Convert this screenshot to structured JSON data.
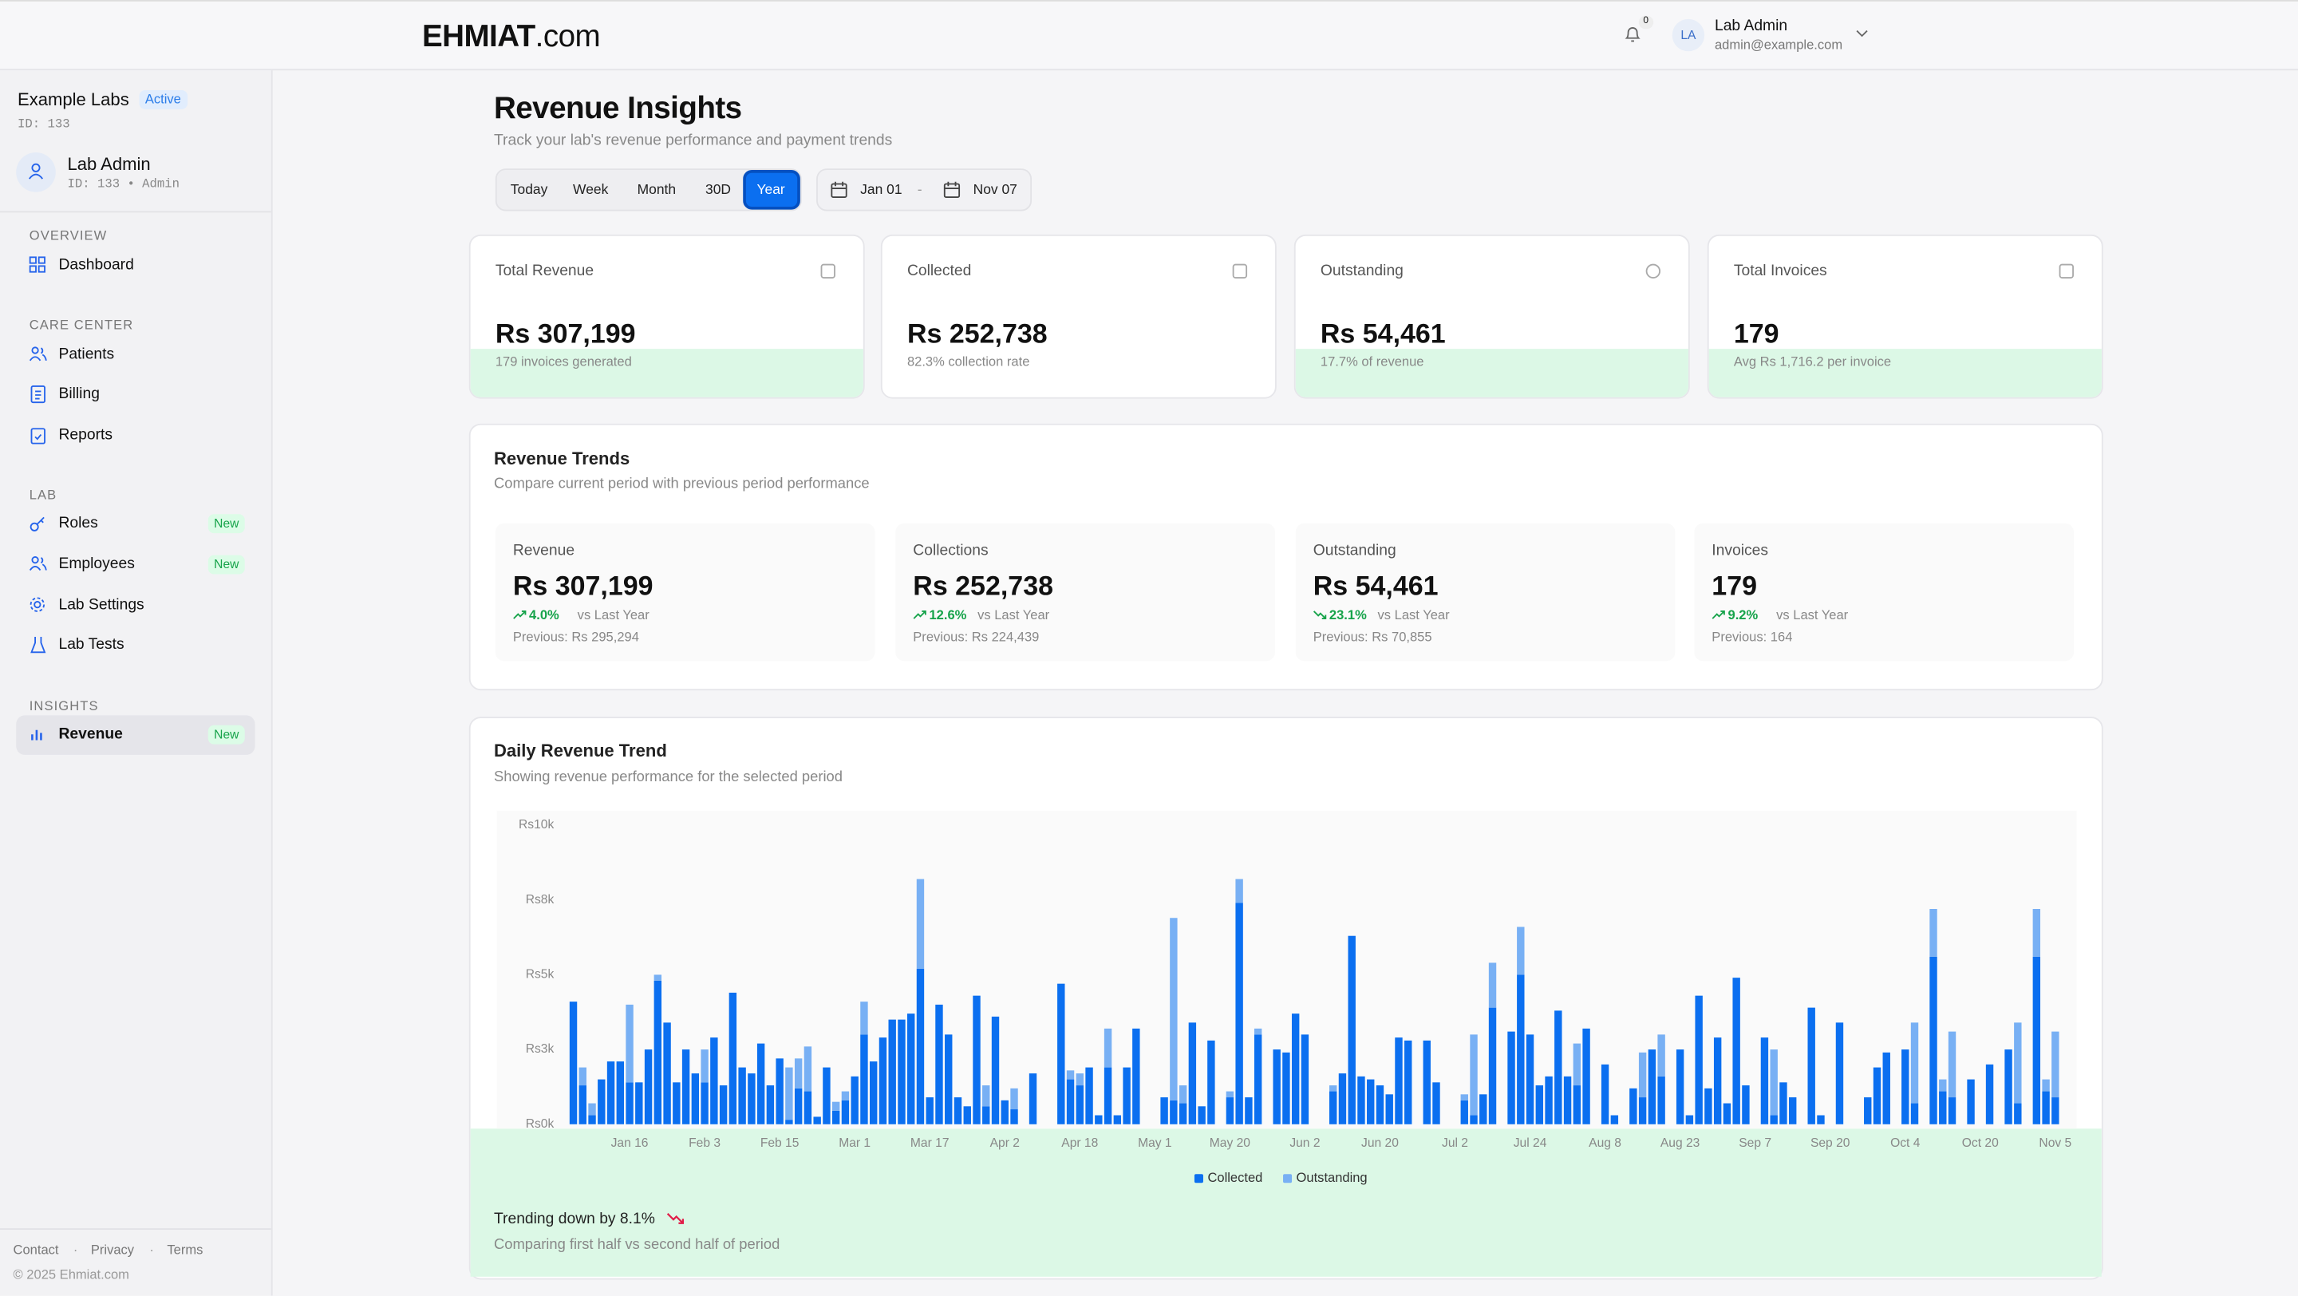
{
  "header": {
    "brand": "EHMIAT",
    "brand_suffix": ".com",
    "notifications": "0",
    "avatar": "LA",
    "user_name": "Lab Admin",
    "user_email": "admin@example.com"
  },
  "sidebar": {
    "org_name": "Example Labs",
    "org_status": "Active",
    "org_id": "ID: 133",
    "user_name": "Lab Admin",
    "user_meta": "ID: 133 • Admin",
    "sections": [
      {
        "title": "OVERVIEW",
        "items": [
          {
            "label": "Dashboard"
          }
        ]
      },
      {
        "title": "CARE CENTER",
        "items": [
          {
            "label": "Patients"
          },
          {
            "label": "Billing"
          },
          {
            "label": "Reports"
          }
        ]
      },
      {
        "title": "LAB",
        "items": [
          {
            "label": "Roles",
            "badge": "New"
          },
          {
            "label": "Employees",
            "badge": "New"
          },
          {
            "label": "Lab Settings"
          },
          {
            "label": "Lab Tests"
          }
        ]
      },
      {
        "title": "INSIGHTS",
        "items": [
          {
            "label": "Revenue",
            "badge": "New"
          }
        ]
      }
    ],
    "footer_links": [
      "Contact",
      "Privacy",
      "Terms"
    ],
    "footer_separator": "·",
    "copyright": "© 2025 Ehmiat.com"
  },
  "page": {
    "title": "Revenue Insights",
    "subtitle": "Track your lab's revenue performance and payment trends",
    "ranges": [
      "Today",
      "Week",
      "Month",
      "30D",
      "Year"
    ],
    "date_from": "Jan 01",
    "date_separator": "-",
    "date_to": "Nov 07"
  },
  "stat_cards": [
    {
      "label": "Total Revenue",
      "value": "Rs 307,199",
      "note": "179 invoices generated"
    },
    {
      "label": "Collected",
      "value": "Rs 252,738",
      "note": "82.3% collection rate"
    },
    {
      "label": "Outstanding",
      "value": "Rs 54,461",
      "note": "17.7% of revenue"
    },
    {
      "label": "Total Invoices",
      "value": "179",
      "note": "Avg Rs 1,716.2 per invoice"
    }
  ],
  "trends": {
    "title": "Revenue Trends",
    "subtitle": "Compare current period with previous period performance",
    "items": [
      {
        "label": "Revenue",
        "value": "Rs 307,199",
        "change": "4.0%",
        "compare": "vs Last Year",
        "previous": "Previous: Rs 295,294"
      },
      {
        "label": "Collections",
        "value": "Rs 252,738",
        "change": "12.6%",
        "compare": "vs Last Year",
        "previous": "Previous: Rs 224,439"
      },
      {
        "label": "Outstanding",
        "value": "Rs 54,461",
        "change": "23.1%",
        "compare": "vs Last Year",
        "previous": "Previous: Rs 70,855"
      },
      {
        "label": "Invoices",
        "value": "179",
        "change": "9.2%",
        "compare": "vs Last Year",
        "previous": "Previous: 164"
      }
    ]
  },
  "chart_data": {
    "type": "bar",
    "stacked": true,
    "title": "Daily Revenue Trend",
    "subtitle": "Showing revenue performance for the selected period",
    "categories": [
      null,
      null,
      null,
      null,
      null,
      null,
      "Jan 16",
      null,
      null,
      null,
      null,
      null,
      null,
      null,
      "Feb 3",
      null,
      null,
      null,
      null,
      null,
      null,
      null,
      "Feb 15",
      null,
      null,
      null,
      null,
      null,
      null,
      null,
      "Mar 1",
      null,
      null,
      null,
      null,
      null,
      null,
      null,
      "Mar 17",
      null,
      null,
      null,
      null,
      null,
      null,
      null,
      "Apr 2",
      null,
      null,
      null,
      null,
      null,
      null,
      null,
      "Apr 18",
      null,
      null,
      null,
      null,
      null,
      null,
      null,
      "May 1",
      null,
      null,
      null,
      null,
      null,
      null,
      null,
      "May 20",
      null,
      null,
      null,
      null,
      null,
      null,
      null,
      "Jun 2",
      null,
      null,
      null,
      null,
      null,
      null,
      null,
      "Jun 20",
      null,
      null,
      null,
      null,
      null,
      null,
      null,
      "Jul 2",
      null,
      null,
      null,
      null,
      null,
      null,
      null,
      "Jul 24",
      null,
      null,
      null,
      null,
      null,
      null,
      null,
      "Aug 8",
      null,
      null,
      null,
      null,
      null,
      null,
      null,
      "Aug 23",
      null,
      null,
      null,
      null,
      null,
      null,
      null,
      "Sep 7",
      null,
      null,
      null,
      null,
      null,
      null,
      null,
      "Sep 20",
      null,
      null,
      null,
      null,
      null,
      null,
      null,
      "Oct 4",
      null,
      null,
      null,
      null,
      null,
      null,
      null,
      "Oct 20",
      null,
      null,
      null,
      null,
      null,
      null,
      null,
      "Nov 5",
      null
    ],
    "series": [
      {
        "name": "Collected",
        "color": "#0b6ff0",
        "values": [
          4100,
          1300,
          300,
          1500,
          2100,
          2100,
          1400,
          1400,
          2500,
          4800,
          3400,
          1400,
          2500,
          1700,
          1400,
          2900,
          1300,
          4400,
          1900,
          1700,
          2700,
          1300,
          2200,
          150,
          1200,
          1100,
          250,
          1900,
          450,
          800,
          1600,
          3000,
          2100,
          2900,
          3500,
          3500,
          3700,
          5200,
          900,
          4000,
          3000,
          900,
          600,
          4300,
          600,
          3600,
          800,
          500,
          0,
          1700,
          0,
          0,
          4700,
          1500,
          1300,
          1900,
          300,
          1900,
          300,
          1900,
          3200,
          0,
          0,
          900,
          800,
          700,
          3400,
          600,
          2800,
          0,
          900,
          7400,
          900,
          3000,
          0,
          2500,
          2400,
          3700,
          3000,
          0,
          0,
          1100,
          1700,
          6300,
          1600,
          1500,
          1300,
          1000,
          2900,
          2800,
          0,
          2800,
          1400,
          0,
          0,
          800,
          300,
          1000,
          3900,
          0,
          3100,
          5000,
          3000,
          1300,
          1600,
          3800,
          1600,
          1300,
          3200,
          0,
          2000,
          300,
          0,
          1200,
          900,
          2500,
          1600,
          0,
          2500,
          300,
          4300,
          1200,
          2900,
          700,
          4900,
          1300,
          0,
          2900,
          300,
          1400,
          900,
          0,
          3900,
          300,
          0,
          3400,
          0,
          0,
          900,
          1900,
          2400,
          0,
          2500,
          700,
          0,
          5600,
          1100,
          900,
          0,
          1500,
          0,
          2000,
          0,
          2500,
          700,
          0,
          5600,
          1100,
          900,
          0
        ]
      },
      {
        "name": "Outstanding",
        "color": "#78b0f4",
        "values": [
          0,
          600,
          400,
          0,
          0,
          0,
          2600,
          0,
          0,
          200,
          0,
          0,
          0,
          0,
          1100,
          0,
          0,
          0,
          0,
          0,
          0,
          0,
          0,
          1750,
          1000,
          1500,
          0,
          0,
          300,
          300,
          0,
          1100,
          0,
          0,
          0,
          0,
          0,
          3000,
          0,
          0,
          0,
          0,
          0,
          0,
          700,
          0,
          0,
          700,
          0,
          0,
          0,
          0,
          0,
          300,
          400,
          0,
          0,
          1300,
          0,
          0,
          0,
          0,
          0,
          0,
          6100,
          600,
          0,
          0,
          0,
          0,
          200,
          800,
          0,
          200,
          0,
          0,
          0,
          0,
          0,
          0,
          0,
          200,
          0,
          0,
          0,
          0,
          0,
          0,
          0,
          0,
          0,
          0,
          0,
          0,
          0,
          200,
          2700,
          0,
          1500,
          0,
          0,
          1600,
          0,
          0,
          0,
          0,
          0,
          1400,
          0,
          0,
          0,
          0,
          0,
          0,
          1500,
          0,
          1400,
          0,
          0,
          0,
          0,
          0,
          0,
          0,
          0,
          0,
          0,
          0,
          2200,
          0,
          0,
          0,
          0,
          0,
          0,
          0,
          0,
          0,
          0,
          0,
          0,
          0,
          0,
          2700,
          0,
          1600,
          400,
          2200,
          0,
          0,
          0,
          0,
          0,
          0,
          2700,
          0,
          1600,
          400,
          2200,
          0
        ]
      }
    ],
    "ylim": [
      0,
      10000
    ],
    "yticks": [
      {
        "value": 0,
        "label": "Rs0k"
      },
      {
        "value": 2500,
        "label": "Rs3k"
      },
      {
        "value": 5000,
        "label": "Rs5k"
      },
      {
        "value": 7500,
        "label": "Rs8k"
      },
      {
        "value": 10000,
        "label": "Rs10k"
      }
    ],
    "grid": false,
    "legend": "bottom",
    "footer_title": "Trending down by 8.1%",
    "footer_note": "Comparing first half vs second half of period"
  }
}
